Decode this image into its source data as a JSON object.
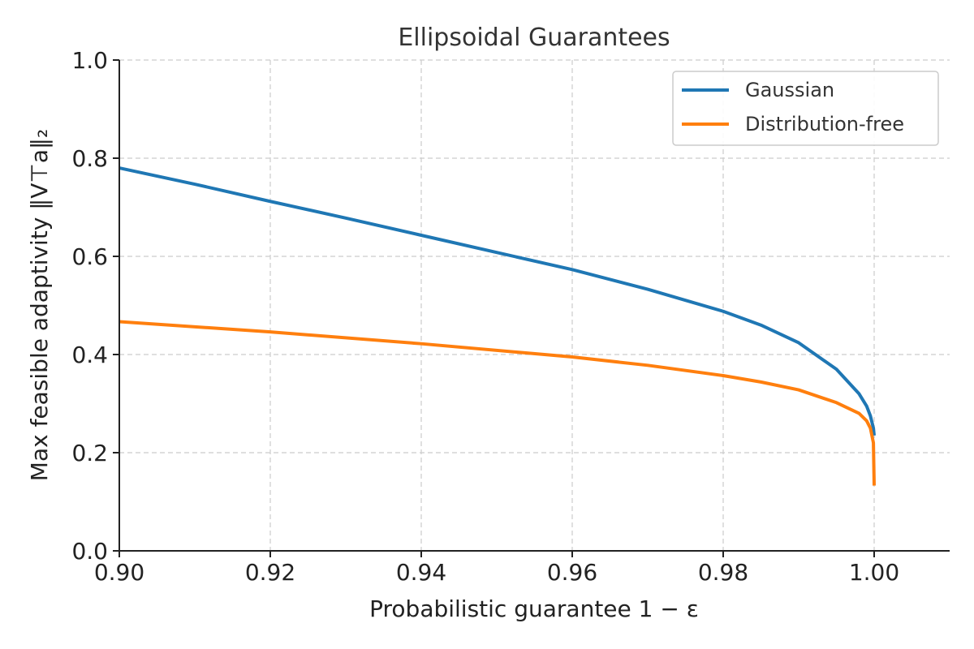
{
  "chart_data": {
    "type": "line",
    "title": "Ellipsoidal Guarantees",
    "xlabel": "Probabilistic guarantee 1 − ε",
    "ylabel": "Max feasible adaptivity ‖V⊤a‖₂",
    "xlim": [
      0.9,
      1.01
    ],
    "ylim": [
      0.0,
      1.0
    ],
    "xticks": [
      0.9,
      0.92,
      0.94,
      0.96,
      0.98,
      1.0
    ],
    "xtick_labels": [
      "0.90",
      "0.92",
      "0.94",
      "0.96",
      "0.98",
      "1.00"
    ],
    "yticks": [
      0.0,
      0.2,
      0.4,
      0.6,
      0.8,
      1.0
    ],
    "ytick_labels": [
      "0.0",
      "0.2",
      "0.4",
      "0.6",
      "0.8",
      "1.0"
    ],
    "grid": true,
    "legend_position": "top-right",
    "series": [
      {
        "name": "Gaussian",
        "color": "#1f77b4",
        "x": [
          0.9,
          0.91,
          0.92,
          0.93,
          0.94,
          0.95,
          0.96,
          0.97,
          0.98,
          0.985,
          0.99,
          0.995,
          0.998,
          0.999,
          0.9995,
          0.9999,
          1.0
        ],
        "y": [
          0.78,
          0.747,
          0.712,
          0.678,
          0.643,
          0.608,
          0.573,
          0.533,
          0.488,
          0.46,
          0.424,
          0.37,
          0.32,
          0.295,
          0.275,
          0.25,
          0.235
        ]
      },
      {
        "name": "Distribution-free",
        "color": "#ff7f0e",
        "x": [
          0.9,
          0.92,
          0.94,
          0.96,
          0.97,
          0.98,
          0.985,
          0.99,
          0.995,
          0.998,
          0.999,
          0.9995,
          0.9999,
          1.0
        ],
        "y": [
          0.467,
          0.446,
          0.422,
          0.395,
          0.378,
          0.357,
          0.344,
          0.328,
          0.302,
          0.28,
          0.265,
          0.25,
          0.22,
          0.133
        ]
      }
    ]
  }
}
